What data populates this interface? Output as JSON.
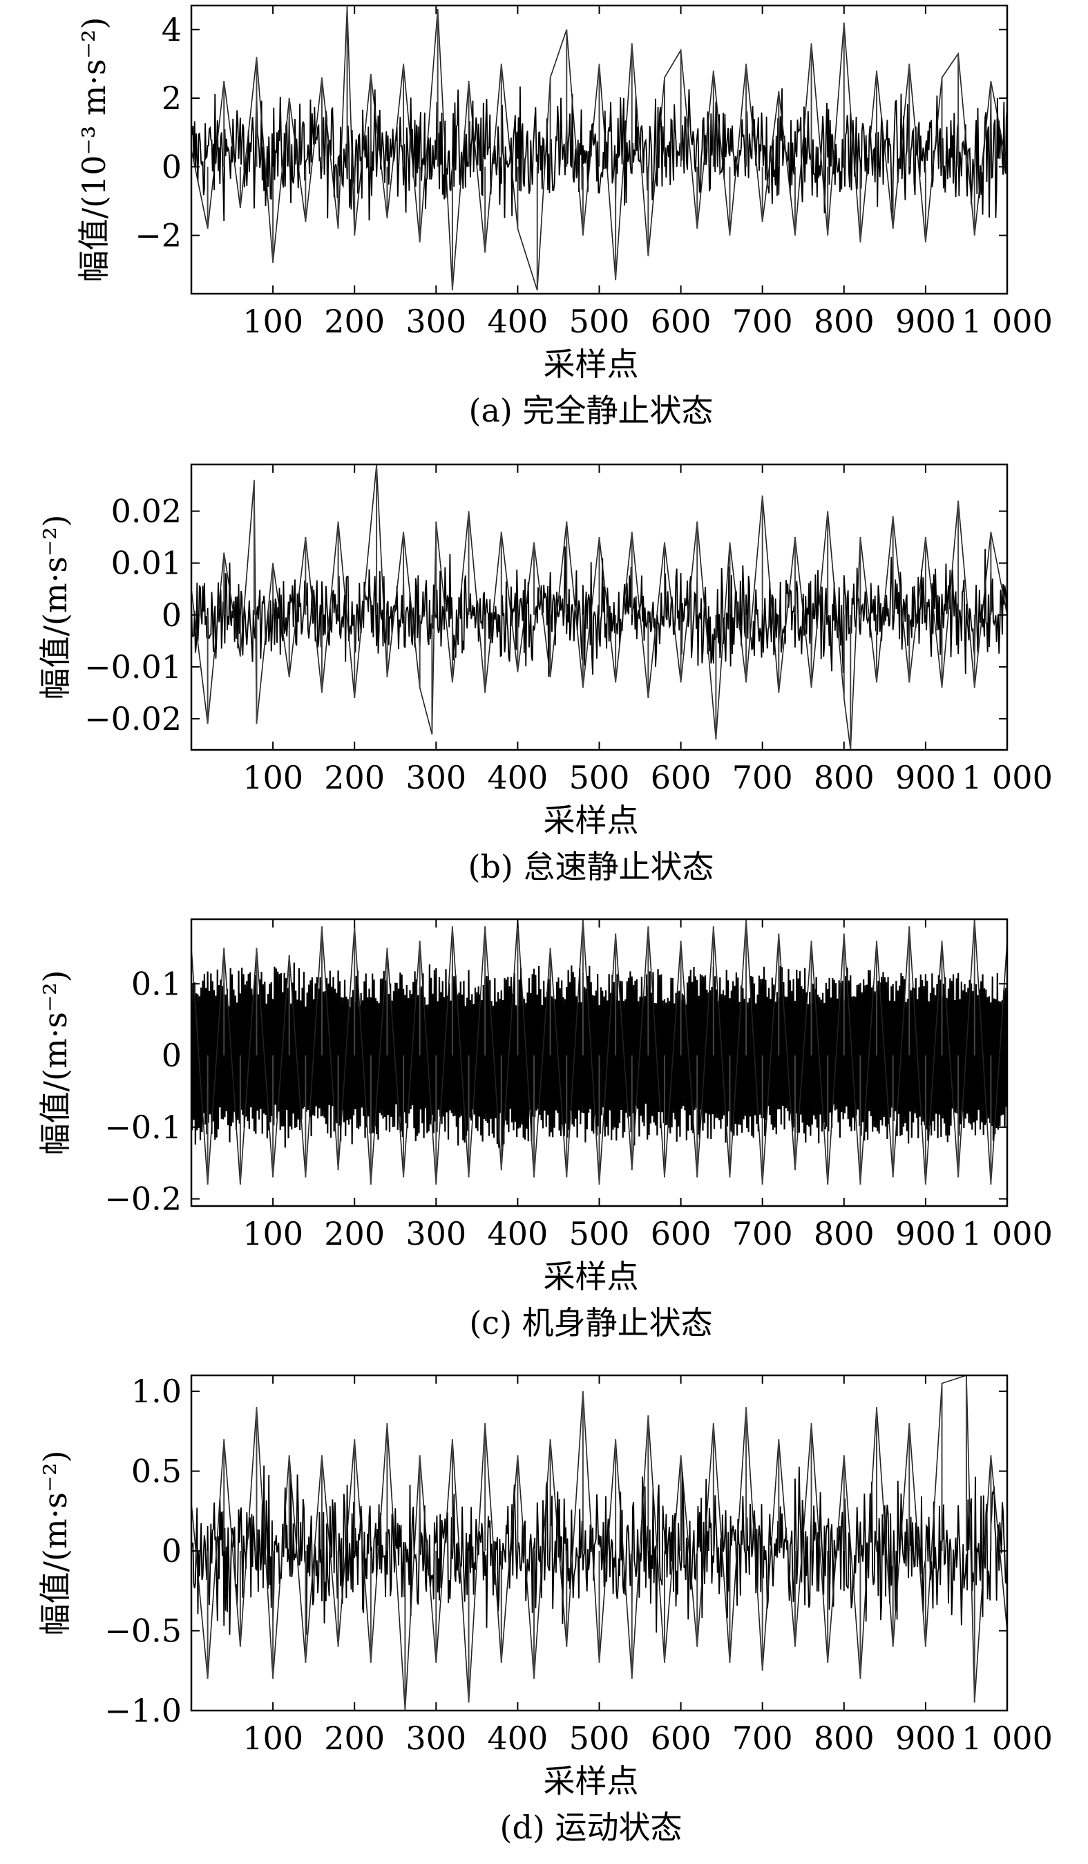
{
  "figure": {
    "panels": [
      {
        "caption": "(a) 完全静止状态",
        "ylabel": "幅值/(10⁻³ m·s⁻²)",
        "xlabel": "采样点",
        "xticks": [
          "100",
          "200",
          "300",
          "400",
          "500",
          "600",
          "700",
          "800",
          "900",
          "1 000"
        ],
        "yticks": [
          "−2",
          "0",
          "2",
          "4"
        ]
      },
      {
        "caption": "(b) 怠速静止状态",
        "ylabel": "幅值/(m·s⁻²)",
        "xlabel": "采样点",
        "xticks": [
          "100",
          "200",
          "300",
          "400",
          "500",
          "600",
          "700",
          "800",
          "900",
          "1 000"
        ],
        "yticks": [
          "−0.02",
          "−0.01",
          "0",
          "0.01",
          "0.02"
        ]
      },
      {
        "caption": "(c) 机身静止状态",
        "ylabel": "幅值/(m·s⁻²)",
        "xlabel": "采样点",
        "xticks": [
          "100",
          "200",
          "300",
          "400",
          "500",
          "600",
          "700",
          "800",
          "900",
          "1 000"
        ],
        "yticks": [
          "−0.2",
          "−0.1",
          "0",
          "0.1"
        ]
      },
      {
        "caption": "(d) 运动状态",
        "ylabel": "幅值/(m·s⁻²)",
        "xlabel": "采样点",
        "xticks": [
          "100",
          "200",
          "300",
          "400",
          "500",
          "600",
          "700",
          "800",
          "900",
          "1 000"
        ],
        "yticks": [
          "−1.0",
          "−0.5",
          "0",
          "0.5",
          "1.0"
        ]
      }
    ]
  },
  "chart_data": [
    {
      "type": "line",
      "series_color": "#000000",
      "x": [
        0,
        20,
        40,
        60,
        80,
        100,
        120,
        140,
        160,
        180,
        191,
        200,
        220,
        240,
        260,
        280,
        302,
        320,
        340,
        360,
        380,
        400,
        424,
        440,
        460,
        480,
        500,
        520,
        540,
        560,
        580,
        600,
        620,
        640,
        660,
        680,
        700,
        720,
        740,
        760,
        780,
        800,
        820,
        840,
        860,
        880,
        900,
        920,
        940,
        960,
        980,
        1000
      ],
      "y": [
        0.5,
        -1.8,
        2.5,
        -1.2,
        3.2,
        -2.8,
        2.0,
        -1.6,
        2.6,
        -1.8,
        4.7,
        -2.0,
        2.7,
        -1.5,
        3.0,
        -2.2,
        4.6,
        -3.6,
        2.5,
        -2.5,
        3.0,
        -1.8,
        -3.6,
        2.6,
        4.0,
        -2.0,
        3.0,
        -3.3,
        3.6,
        -2.6,
        2.6,
        3.4,
        -1.8,
        2.8,
        -2.0,
        3.0,
        -1.6,
        2.2,
        -2.0,
        3.6,
        -2.0,
        4.2,
        -2.2,
        2.8,
        -1.8,
        3.0,
        -2.2,
        2.6,
        3.3,
        -2.0,
        2.5,
        0.0
      ],
      "xlabel": "采样点",
      "ylabel": "幅值/(10⁻³ m·s⁻²)",
      "xlim": [
        0,
        1000
      ],
      "ylim": [
        -3.7,
        4.7
      ],
      "grid": false
    },
    {
      "type": "line",
      "series_color": "#000000",
      "x": [
        0,
        20,
        40,
        60,
        77,
        80,
        100,
        120,
        140,
        160,
        180,
        200,
        227,
        240,
        260,
        280,
        295,
        300,
        320,
        340,
        360,
        380,
        400,
        420,
        440,
        460,
        480,
        500,
        520,
        540,
        560,
        580,
        600,
        620,
        643,
        660,
        680,
        700,
        720,
        740,
        760,
        780,
        800,
        808,
        820,
        840,
        860,
        880,
        900,
        920,
        940,
        960,
        980,
        1000
      ],
      "y": [
        0.005,
        -0.021,
        0.012,
        -0.008,
        0.026,
        -0.021,
        0.01,
        -0.012,
        0.015,
        -0.015,
        0.018,
        -0.016,
        0.029,
        -0.012,
        0.016,
        -0.014,
        -0.023,
        0.018,
        -0.013,
        0.02,
        -0.015,
        0.016,
        -0.011,
        0.014,
        -0.012,
        0.018,
        -0.014,
        0.015,
        -0.013,
        0.016,
        -0.016,
        0.014,
        -0.013,
        0.018,
        -0.024,
        0.014,
        -0.013,
        0.023,
        -0.015,
        0.015,
        -0.014,
        0.02,
        -0.016,
        -0.026,
        0.015,
        -0.013,
        0.019,
        -0.013,
        0.015,
        -0.014,
        0.022,
        -0.014,
        0.016,
        0.0
      ],
      "xlabel": "采样点",
      "ylabel": "幅值/(m·s⁻²)",
      "xlim": [
        0,
        1000
      ],
      "ylim": [
        -0.026,
        0.029
      ],
      "grid": false
    },
    {
      "type": "line",
      "series_color": "#000000",
      "x": [
        0,
        20,
        40,
        60,
        80,
        100,
        120,
        140,
        160,
        180,
        200,
        220,
        240,
        260,
        280,
        300,
        320,
        340,
        360,
        380,
        400,
        420,
        440,
        460,
        480,
        500,
        520,
        540,
        560,
        580,
        600,
        620,
        640,
        660,
        680,
        700,
        720,
        740,
        760,
        780,
        800,
        820,
        840,
        860,
        880,
        900,
        920,
        940,
        960,
        980,
        1000
      ],
      "y": [
        0.15,
        -0.18,
        0.15,
        -0.18,
        0.15,
        -0.17,
        0.14,
        -0.17,
        0.18,
        -0.16,
        0.18,
        -0.18,
        0.15,
        -0.17,
        0.16,
        -0.18,
        0.18,
        -0.17,
        0.18,
        -0.16,
        0.19,
        -0.17,
        0.15,
        -0.17,
        0.19,
        -0.18,
        0.17,
        -0.16,
        0.18,
        -0.17,
        0.16,
        -0.17,
        0.18,
        -0.17,
        0.19,
        -0.18,
        0.17,
        -0.16,
        0.16,
        -0.18,
        0.17,
        -0.18,
        0.16,
        -0.17,
        0.18,
        -0.18,
        0.16,
        -0.17,
        0.19,
        -0.18,
        0.16
      ],
      "xlabel": "采样点",
      "ylabel": "幅值/(m·s⁻²)",
      "xlim": [
        0,
        1000
      ],
      "ylim": [
        -0.21,
        0.19
      ],
      "grid": false
    },
    {
      "type": "line",
      "series_color": "#000000",
      "x": [
        0,
        20,
        40,
        60,
        80,
        100,
        120,
        140,
        160,
        180,
        200,
        220,
        240,
        262,
        280,
        300,
        320,
        340,
        360,
        380,
        400,
        420,
        440,
        460,
        480,
        500,
        520,
        540,
        560,
        580,
        600,
        620,
        640,
        660,
        680,
        700,
        720,
        740,
        760,
        780,
        800,
        820,
        840,
        860,
        880,
        900,
        920,
        950,
        960,
        980,
        1000
      ],
      "y": [
        0.3,
        -0.8,
        0.7,
        -0.6,
        0.9,
        -0.8,
        0.6,
        -0.7,
        0.6,
        -0.6,
        0.7,
        -0.7,
        0.8,
        -1.0,
        0.6,
        -0.7,
        0.7,
        -0.95,
        0.8,
        -0.7,
        0.6,
        -0.8,
        0.7,
        -0.6,
        1.0,
        -0.7,
        0.7,
        -0.8,
        0.85,
        -0.7,
        0.6,
        -0.6,
        0.8,
        -0.7,
        0.9,
        -0.75,
        0.7,
        -0.6,
        0.8,
        -0.7,
        0.6,
        -0.8,
        0.9,
        -0.6,
        0.8,
        -0.6,
        1.05,
        1.1,
        -0.95,
        0.6,
        -0.5
      ],
      "xlabel": "采样点",
      "ylabel": "幅值/(m·s⁻²)",
      "xlim": [
        0,
        1000
      ],
      "ylim": [
        -1.0,
        1.1
      ],
      "grid": false
    }
  ]
}
